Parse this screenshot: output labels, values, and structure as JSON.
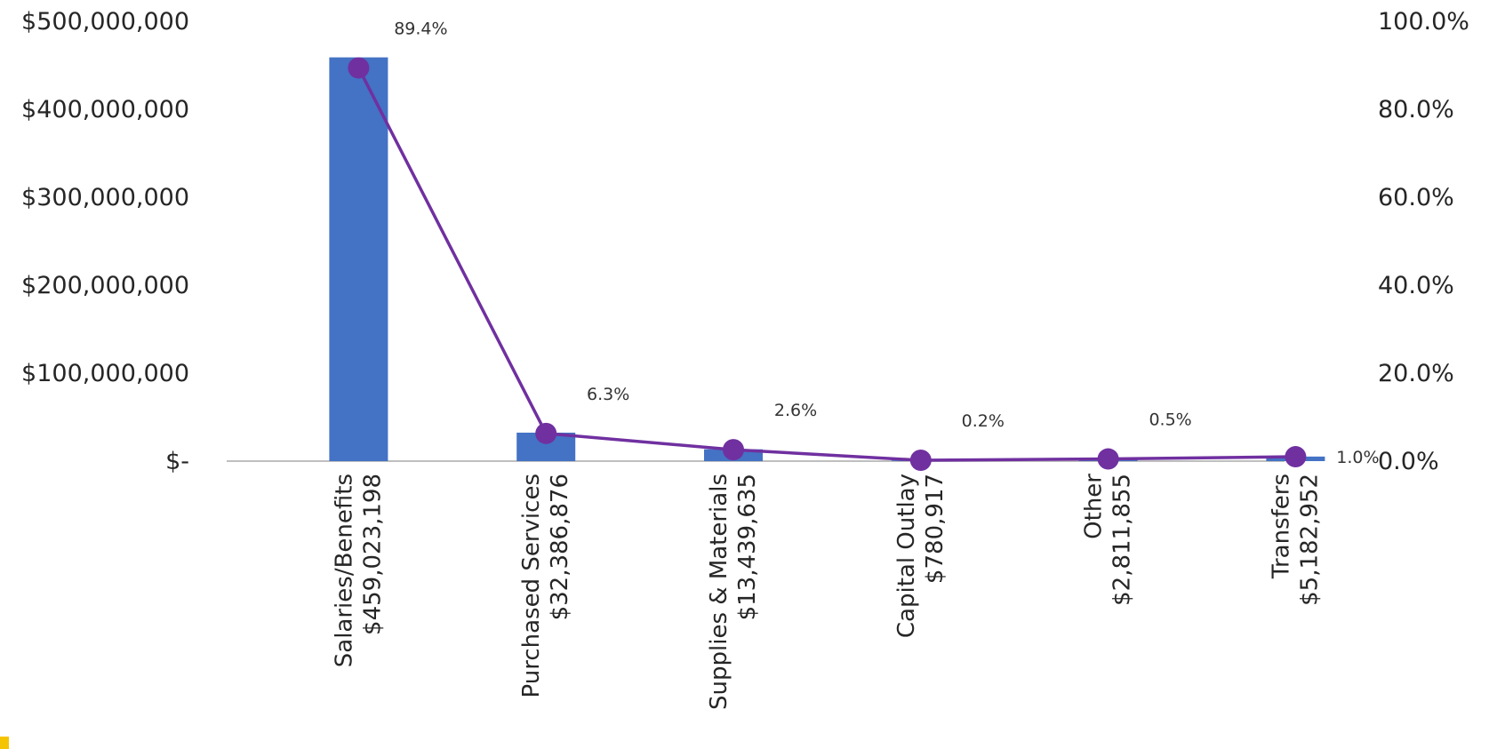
{
  "chart_data": {
    "type": "bar",
    "categories": [
      "Salaries/Benefits",
      "Purchased Services",
      "Supplies & Materials",
      "Capital Outlay",
      "Other",
      "Transfers"
    ],
    "category_amounts": [
      "$459,023,198",
      "$32,386,876",
      "$13,439,635",
      "$780,917",
      "$2,811,855",
      "$5,182,952"
    ],
    "series": [
      {
        "type": "bar",
        "axis": "left",
        "values": [
          459023198,
          32386876,
          13439635,
          780917,
          2811855,
          5182952
        ]
      },
      {
        "type": "line",
        "axis": "right",
        "values": [
          89.4,
          6.3,
          2.6,
          0.2,
          0.5,
          1.0
        ]
      }
    ],
    "data_labels": [
      "89.4%",
      "6.3%",
      "2.6%",
      "0.2%",
      "0.5%",
      "1.0%"
    ],
    "y_left": {
      "ylim": [
        0,
        500000000
      ],
      "ticks": [
        "$-",
        "$100,000,000",
        "$200,000,000",
        "$300,000,000",
        "$400,000,000",
        "$500,000,000"
      ]
    },
    "y_right": {
      "ylim": [
        0,
        100
      ],
      "ticks": [
        "0.0%",
        "20.0%",
        "40.0%",
        "60.0%",
        "80.0%",
        "100.0%"
      ]
    },
    "grid": false,
    "legend": "none",
    "title": "",
    "xlabel": "",
    "ylabel": ""
  },
  "colors": {
    "bar": "#4472C4",
    "line": "#7030A0",
    "axis": "#BFBFBF",
    "accent": "#F5C400"
  }
}
